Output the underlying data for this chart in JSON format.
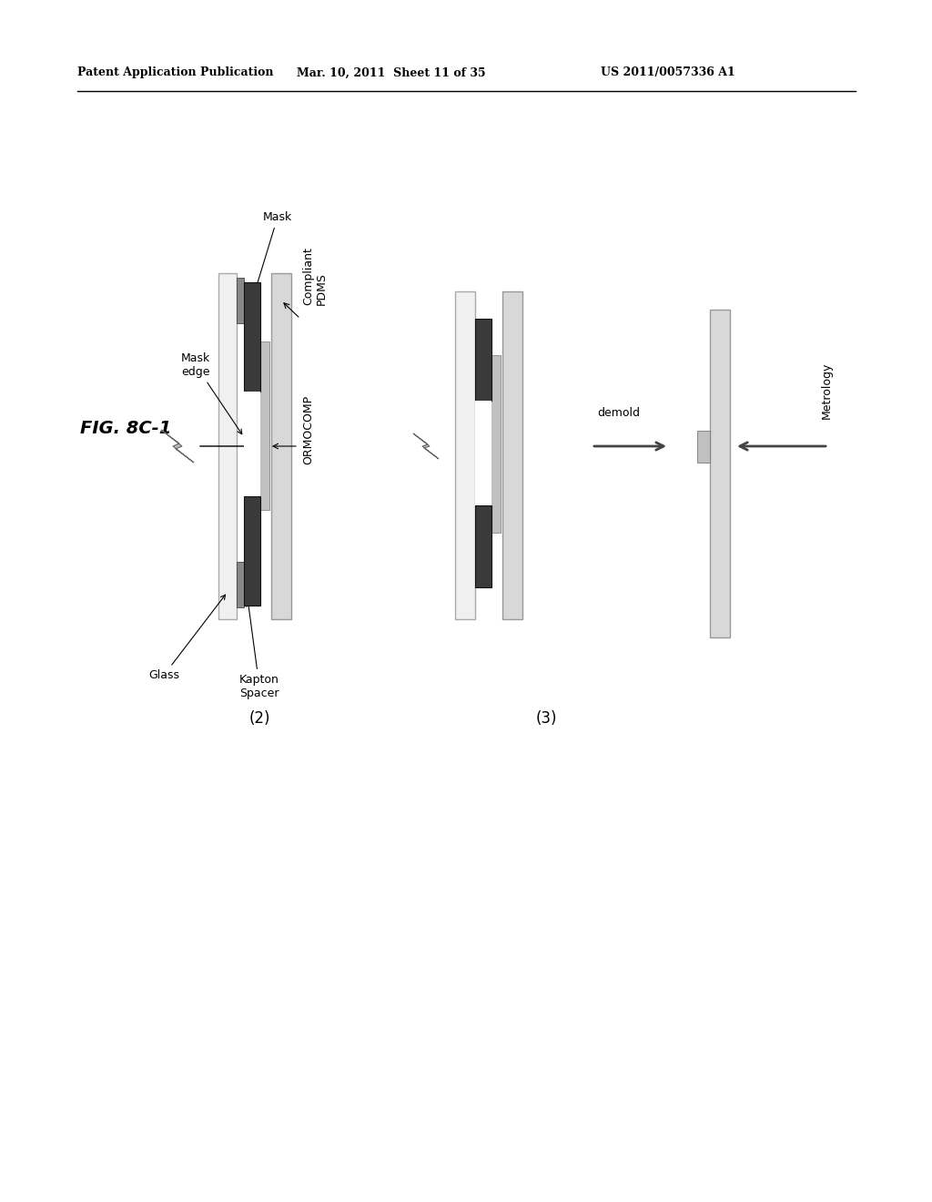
{
  "bg_color": "#ffffff",
  "header_left": "Patent Application Publication",
  "header_mid": "Mar. 10, 2011  Sheet 11 of 35",
  "header_right": "US 2011/0057336 A1",
  "fig_label": "FIG. 8C-1",
  "label2": "(2)",
  "label3": "(3)",
  "glass_color": "#f0f0f0",
  "mask_color": "#3a3a3a",
  "ormocomp_color": "#c0c0c0",
  "pdms_color": "#d8d8d8",
  "kapton_color": "#888888",
  "white_color": "#ffffff",
  "arrow_color": "#555555"
}
